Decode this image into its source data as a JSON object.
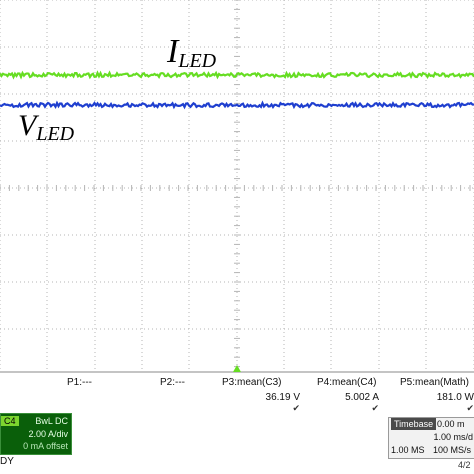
{
  "waveforms": {
    "current_label": "I",
    "current_sub": "LED",
    "voltage_label": "V",
    "voltage_sub": "LED",
    "current_color": "#66dd22",
    "voltage_color": "#1f3fcf"
  },
  "measurements": [
    {
      "name": "P1:---",
      "value": "",
      "check": ""
    },
    {
      "name": "P2:---",
      "value": "",
      "check": ""
    },
    {
      "name": "P3:mean(C3)",
      "value": "36.19 V",
      "check": "✔"
    },
    {
      "name": "P4:mean(C4)",
      "value": "5.002 A",
      "check": "✔"
    },
    {
      "name": "P5:mean(Math)",
      "value": "181.0 W",
      "check": "✔"
    }
  ],
  "channel": {
    "tag": "C4",
    "coupling": "BwL DC",
    "vdiv": "2.00 A/div",
    "offset": "0 mA offset"
  },
  "status": "DY",
  "timebase": {
    "label": "Timebase",
    "value": "0.00 m",
    "per_div": "1.00 ms/d",
    "record": "1.00 MS",
    "rate": "100 MS/s"
  },
  "date": "4/2",
  "colors": {
    "grid": "#b5b5b5",
    "trigger": "#66dd22",
    "background": "#ffffff"
  }
}
